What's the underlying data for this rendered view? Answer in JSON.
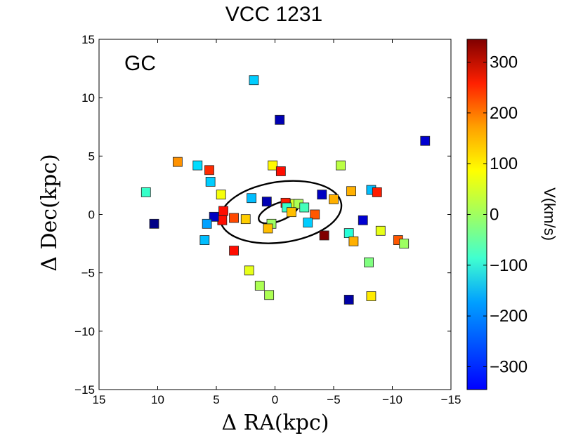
{
  "chart_data": {
    "type": "scatter",
    "title": "VCC 1231",
    "xlabel": "Δ RA(kpc)",
    "ylabel": "Δ Dec(kpc)",
    "xlim": [
      15,
      -15
    ],
    "ylim": [
      -15,
      15
    ],
    "xticks": [
      15,
      10,
      5,
      0,
      -5,
      -10,
      -15
    ],
    "xtick_labels": [
      "15",
      "10",
      "5",
      "0",
      "−5",
      "−10",
      "−15"
    ],
    "yticks": [
      15,
      10,
      5,
      0,
      -5,
      -10,
      -15
    ],
    "ytick_labels": [
      "15",
      "10",
      "5",
      "0",
      "−5",
      "−10",
      "−15"
    ],
    "annotation": "GC",
    "colorbar": {
      "label": "V(km/s)",
      "vmin": -345,
      "vmax": 345,
      "ticks": [
        300,
        200,
        100,
        0,
        -100,
        -200,
        -300
      ],
      "tick_labels": [
        "300",
        "200",
        "100",
        "0",
        "−100",
        "−200",
        "−300"
      ],
      "colormap": "jet"
    },
    "ellipses": [
      {
        "cx": -0.5,
        "cy": 0.2,
        "rx": 5.2,
        "ry": 2.6,
        "angle_deg": 8
      },
      {
        "cx": -0.3,
        "cy": 0.2,
        "rx": 1.8,
        "ry": 0.75,
        "angle_deg": 22
      }
    ],
    "points": [
      {
        "x": 1.8,
        "y": 11.5,
        "v": -120
      },
      {
        "x": -0.4,
        "y": 8.1,
        "v": -310
      },
      {
        "x": -12.8,
        "y": 6.3,
        "v": -290
      },
      {
        "x": 8.3,
        "y": 4.5,
        "v": 160
      },
      {
        "x": 6.6,
        "y": 4.2,
        "v": -110
      },
      {
        "x": 5.6,
        "y": 3.8,
        "v": 230
      },
      {
        "x": 0.2,
        "y": 4.2,
        "v": 90
      },
      {
        "x": -0.5,
        "y": 3.7,
        "v": 250
      },
      {
        "x": -5.6,
        "y": 4.2,
        "v": 40
      },
      {
        "x": 11.0,
        "y": 1.9,
        "v": -50
      },
      {
        "x": 5.5,
        "y": 2.8,
        "v": -120
      },
      {
        "x": 2.0,
        "y": 1.4,
        "v": -130
      },
      {
        "x": 4.6,
        "y": 1.7,
        "v": 80
      },
      {
        "x": -4.0,
        "y": 1.7,
        "v": -300
      },
      {
        "x": -5.0,
        "y": 1.3,
        "v": 140
      },
      {
        "x": -6.5,
        "y": 2.0,
        "v": 140
      },
      {
        "x": -8.2,
        "y": 2.1,
        "v": -130
      },
      {
        "x": -8.7,
        "y": 1.9,
        "v": 240
      },
      {
        "x": 0.7,
        "y": 1.1,
        "v": -310
      },
      {
        "x": -0.9,
        "y": 1.0,
        "v": 240
      },
      {
        "x": -1.7,
        "y": 0.9,
        "v": 60
      },
      {
        "x": -2.0,
        "y": 0.9,
        "v": 30
      },
      {
        "x": -2.5,
        "y": 0.6,
        "v": -40
      },
      {
        "x": -1.0,
        "y": 0.6,
        "v": -50
      },
      {
        "x": -1.4,
        "y": 0.2,
        "v": 130
      },
      {
        "x": -3.4,
        "y": 0.0,
        "v": 200
      },
      {
        "x": 4.4,
        "y": 0.3,
        "v": 250
      },
      {
        "x": 4.5,
        "y": -0.5,
        "v": 250
      },
      {
        "x": 3.5,
        "y": -0.3,
        "v": 210
      },
      {
        "x": 2.5,
        "y": -0.4,
        "v": 120
      },
      {
        "x": 5.2,
        "y": -0.2,
        "v": -300
      },
      {
        "x": 5.8,
        "y": -0.8,
        "v": -150
      },
      {
        "x": 10.3,
        "y": -0.8,
        "v": -340
      },
      {
        "x": -2.8,
        "y": -0.7,
        "v": -120
      },
      {
        "x": 0.3,
        "y": -0.8,
        "v": 20
      },
      {
        "x": 0.6,
        "y": -1.2,
        "v": 130
      },
      {
        "x": -4.2,
        "y": -1.8,
        "v": 345
      },
      {
        "x": -6.3,
        "y": -1.6,
        "v": -60
      },
      {
        "x": -6.7,
        "y": -2.3,
        "v": 140
      },
      {
        "x": -7.5,
        "y": -0.5,
        "v": -290
      },
      {
        "x": -9.0,
        "y": -1.4,
        "v": 70
      },
      {
        "x": -10.5,
        "y": -2.2,
        "v": 200
      },
      {
        "x": -11.0,
        "y": -2.5,
        "v": 20
      },
      {
        "x": 6.0,
        "y": -2.2,
        "v": -130
      },
      {
        "x": 3.5,
        "y": -3.1,
        "v": 250
      },
      {
        "x": 2.2,
        "y": -4.8,
        "v": 70
      },
      {
        "x": -8.0,
        "y": -4.1,
        "v": 0
      },
      {
        "x": 1.3,
        "y": -6.1,
        "v": 30
      },
      {
        "x": 0.5,
        "y": -6.9,
        "v": 30
      },
      {
        "x": -6.3,
        "y": -7.3,
        "v": -320
      },
      {
        "x": -8.2,
        "y": -7.0,
        "v": 100
      }
    ]
  }
}
